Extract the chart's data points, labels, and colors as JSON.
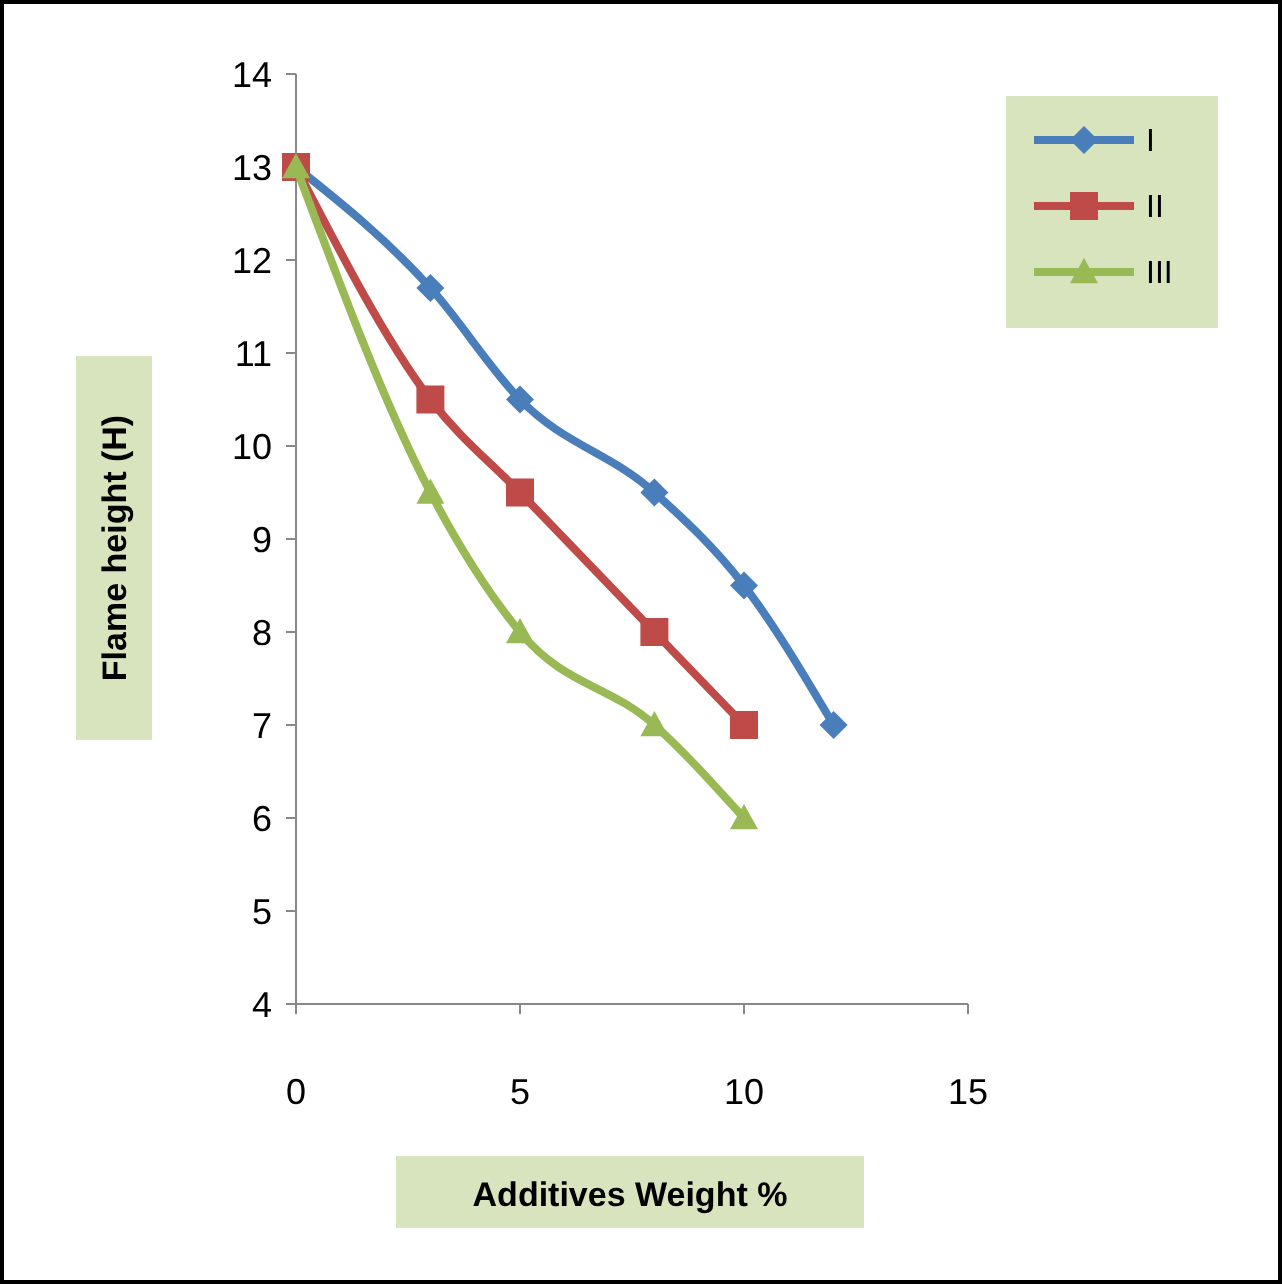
{
  "chart_data": {
    "type": "line",
    "xlabel": "Additives Weight %",
    "ylabel": "Flame height (H)",
    "xlim": [
      0,
      15
    ],
    "xticks": [
      0,
      5,
      10,
      15
    ],
    "ylim": [
      4,
      14
    ],
    "yticks": [
      4,
      5,
      6,
      7,
      8,
      9,
      10,
      11,
      12,
      13,
      14
    ],
    "grid": false,
    "legend": "top right",
    "series": [
      {
        "name": "I",
        "color": "#4a7ebb",
        "marker": "diamond",
        "x": [
          0,
          3,
          5,
          8,
          10,
          12
        ],
        "values": [
          13,
          11.7,
          10.5,
          9.5,
          8.5,
          7
        ]
      },
      {
        "name": "II",
        "color": "#be4b48",
        "marker": "square",
        "x": [
          0,
          3,
          5,
          8,
          10
        ],
        "values": [
          13,
          10.5,
          9.5,
          8,
          7
        ]
      },
      {
        "name": "III",
        "color": "#98b954",
        "marker": "triangle",
        "x": [
          0,
          3,
          5,
          8,
          10
        ],
        "values": [
          13,
          9.5,
          8,
          7,
          6
        ]
      }
    ]
  }
}
